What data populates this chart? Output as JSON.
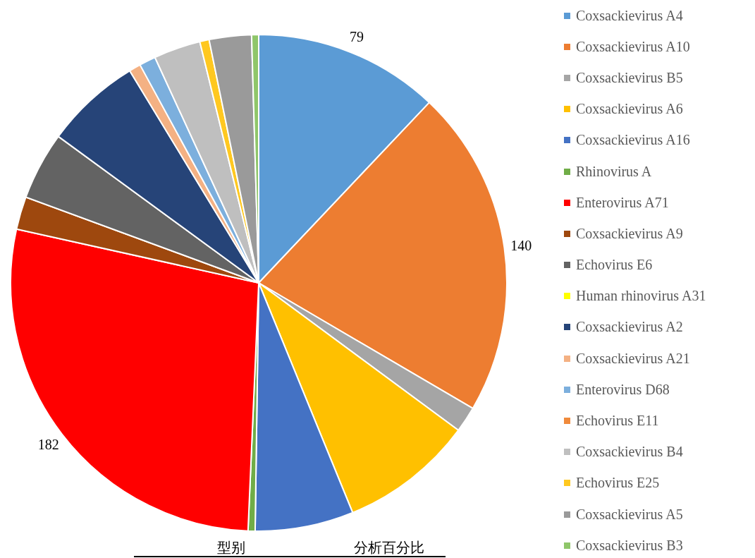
{
  "chart_data": {
    "type": "pie",
    "categories": [
      "Coxsackievirus A4",
      "Coxsackievirus A10",
      "Coxsackievirus B5",
      "Coxsackievirus A6",
      "Coxsackievirus A16",
      "Rhinovirus A",
      "Enterovirus A71",
      "Coxsackievirus A9",
      "Echovirus E6",
      "Human rhinovirus A31",
      "Coxsackievirus A2",
      "Coxsackievirus A21",
      "Enterovirus D68",
      "Echovirus E11",
      "Coxsackievirus B4",
      "Echovirus E25",
      "Coxsackievirus A5",
      "Coxsackievirus B3"
    ],
    "values": [
      79,
      140,
      11,
      57,
      42,
      3,
      182,
      14,
      29,
      null,
      41,
      5,
      7,
      null,
      20,
      4,
      18,
      3
    ],
    "value_labels": [
      "79",
      "140",
      null,
      null,
      null,
      null,
      "182",
      null,
      null,
      null,
      null,
      null,
      null,
      null,
      null,
      null,
      null,
      null
    ],
    "colors": [
      "#5b9bd5",
      "#ed7d31",
      "#a5a5a5",
      "#ffc000",
      "#4472c4",
      "#70ad47",
      "#ff0000",
      "#9e480e",
      "#636363",
      "#ffff00",
      "#264478",
      "#f4b183",
      "#7cafdd",
      "#f08a3c",
      "#bfbfbf",
      "#ffc820",
      "#9a9a9a",
      "#8fc66a"
    ],
    "legend": "right",
    "annotations": [
      "型别",
      "分析百分比"
    ]
  }
}
